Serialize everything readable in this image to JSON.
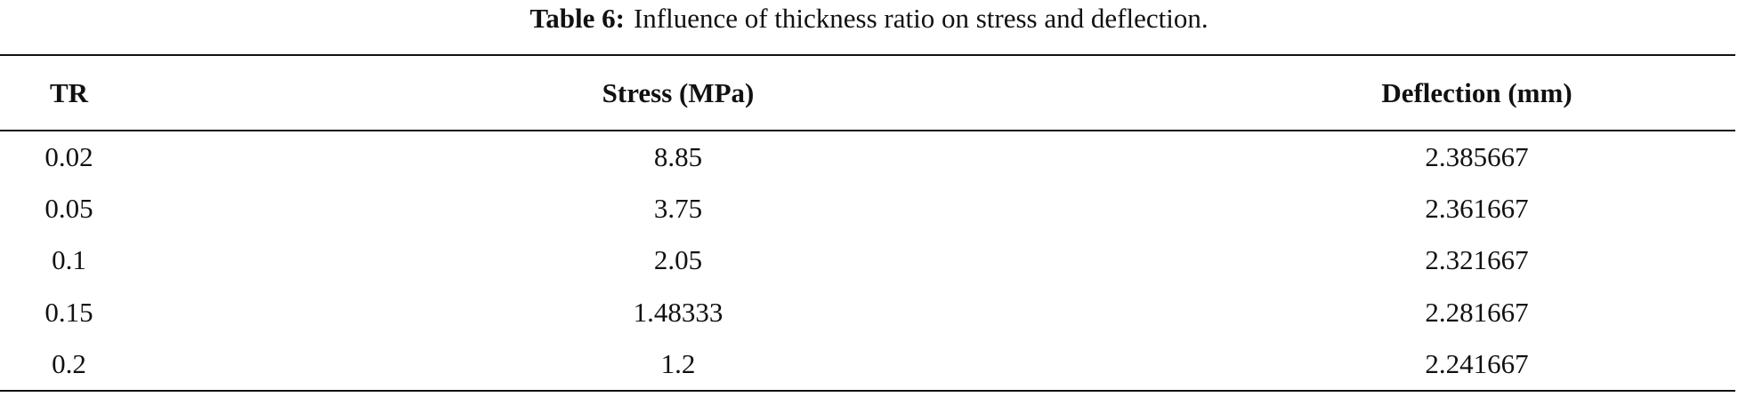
{
  "caption": {
    "label": "Table 6:",
    "text": "Influence of thickness ratio on stress and deflection."
  },
  "table": {
    "header": [
      "TR",
      "Stress (MPa)",
      "Deflection (mm)"
    ],
    "rows": [
      [
        "0.02",
        "8.85",
        "2.385667"
      ],
      [
        "0.05",
        "3.75",
        "2.361667"
      ],
      [
        "0.1",
        "2.05",
        "2.321667"
      ],
      [
        "0.15",
        "1.48333",
        "2.281667"
      ],
      [
        "0.2",
        "1.2",
        "2.241667"
      ]
    ]
  }
}
